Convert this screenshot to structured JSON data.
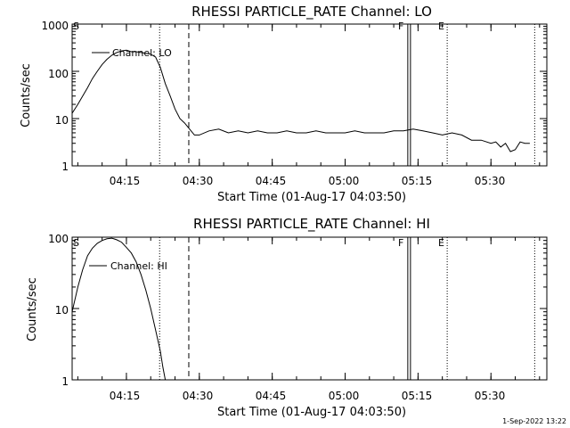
{
  "footer_text": "1-Sep-2022 13:22",
  "chart_data": [
    {
      "type": "line",
      "title": "RHESSI PARTICLE_RATE Channel: LO",
      "xlabel": "Start Time (01-Aug-17 04:03:50)",
      "ylabel": "Counts/sec",
      "yscale": "log",
      "ylim": [
        1,
        1000
      ],
      "xlim": [
        "04:03:50",
        "05:41:30"
      ],
      "ytick_labels": [
        "1",
        "10",
        "100",
        "1000"
      ],
      "xtick_labels": [
        "04:15",
        "04:30",
        "04:45",
        "05:00",
        "05:15",
        "05:30"
      ],
      "markers": [
        {
          "time": "04:03:50",
          "label": "S",
          "style": "none"
        },
        {
          "time": "04:21:50",
          "label": "",
          "style": "dotted"
        },
        {
          "time": "04:27:50",
          "label": "",
          "style": "dashed"
        },
        {
          "time": "05:13:10",
          "label": "F",
          "style": "solid-double"
        },
        {
          "time": "05:21:00",
          "label": "E",
          "style": "dotted"
        },
        {
          "time": "05:39:00",
          "label": "",
          "style": "dotted"
        }
      ],
      "series": [
        {
          "name": "Channel: LO",
          "color": "#000000",
          "x": [
            "04:03:50",
            "04:05:00",
            "04:06:00",
            "04:07:00",
            "04:08:00",
            "04:09:00",
            "04:10:00",
            "04:11:00",
            "04:12:00",
            "04:13:00",
            "04:14:00",
            "04:15:00",
            "04:16:00",
            "04:17:00",
            "04:18:00",
            "04:19:00",
            "04:20:00",
            "04:21:00",
            "04:22:00",
            "04:23:00",
            "04:24:00",
            "04:25:00",
            "04:26:00",
            "04:27:00",
            "04:28:00",
            "04:29:00",
            "04:30:00",
            "04:32:00",
            "04:34:00",
            "04:36:00",
            "04:38:00",
            "04:40:00",
            "04:42:00",
            "04:44:00",
            "04:46:00",
            "04:48:00",
            "04:50:00",
            "04:52:00",
            "04:54:00",
            "04:56:00",
            "04:58:00",
            "05:00:00",
            "05:02:00",
            "05:04:00",
            "05:06:00",
            "05:08:00",
            "05:10:00",
            "05:12:00",
            "05:14:00",
            "05:16:00",
            "05:18:00",
            "05:20:00",
            "05:22:00",
            "05:24:00",
            "05:26:00",
            "05:28:00",
            "05:30:00",
            "05:31:00",
            "05:32:00",
            "05:33:00",
            "05:34:00",
            "05:35:00",
            "05:36:00",
            "05:37:00",
            "05:38:00"
          ],
          "y": [
            13,
            20,
            30,
            45,
            70,
            100,
            140,
            180,
            220,
            250,
            270,
            280,
            260,
            260,
            250,
            240,
            230,
            200,
            120,
            55,
            30,
            16,
            10,
            8,
            6,
            4.5,
            4.5,
            5.5,
            6,
            5,
            5.5,
            5,
            5.5,
            5,
            5,
            5.5,
            5,
            5,
            5.5,
            5,
            5,
            5,
            5.5,
            5,
            5,
            5,
            5.5,
            5.5,
            6,
            5.5,
            5,
            4.5,
            5,
            4.5,
            3.5,
            3.5,
            3,
            3.2,
            2.5,
            3,
            2,
            2.2,
            3.2,
            3,
            3
          ]
        }
      ]
    },
    {
      "type": "line",
      "title": "RHESSI PARTICLE_RATE Channel: HI",
      "xlabel": "Start Time (01-Aug-17 04:03:50)",
      "ylabel": "Counts/sec",
      "yscale": "log",
      "ylim": [
        1,
        100
      ],
      "xlim": [
        "04:03:50",
        "05:41:30"
      ],
      "ytick_labels": [
        "1",
        "10",
        "100"
      ],
      "xtick_labels": [
        "04:15",
        "04:30",
        "04:45",
        "05:00",
        "05:15",
        "05:30"
      ],
      "markers": [
        {
          "time": "04:03:50",
          "label": "S",
          "style": "none"
        },
        {
          "time": "04:21:50",
          "label": "",
          "style": "dotted"
        },
        {
          "time": "04:27:50",
          "label": "",
          "style": "dashed"
        },
        {
          "time": "05:13:10",
          "label": "F",
          "style": "solid-double"
        },
        {
          "time": "05:21:00",
          "label": "E",
          "style": "dotted"
        },
        {
          "time": "05:39:00",
          "label": "",
          "style": "dotted"
        }
      ],
      "series": [
        {
          "name": "Channel: HI",
          "color": "#000000",
          "x": [
            "04:03:50",
            "04:05:00",
            "04:06:00",
            "04:07:00",
            "04:08:00",
            "04:09:00",
            "04:10:00",
            "04:11:00",
            "04:12:00",
            "04:13:00",
            "04:14:00",
            "04:15:00",
            "04:16:00",
            "04:17:00",
            "04:18:00",
            "04:19:00",
            "04:20:00",
            "04:21:00",
            "04:22:00",
            "04:22:30",
            "04:23:00"
          ],
          "y": [
            9,
            20,
            35,
            55,
            70,
            82,
            90,
            95,
            97,
            92,
            85,
            72,
            60,
            45,
            30,
            18,
            10,
            5,
            2.5,
            1.5,
            1
          ]
        }
      ]
    }
  ]
}
